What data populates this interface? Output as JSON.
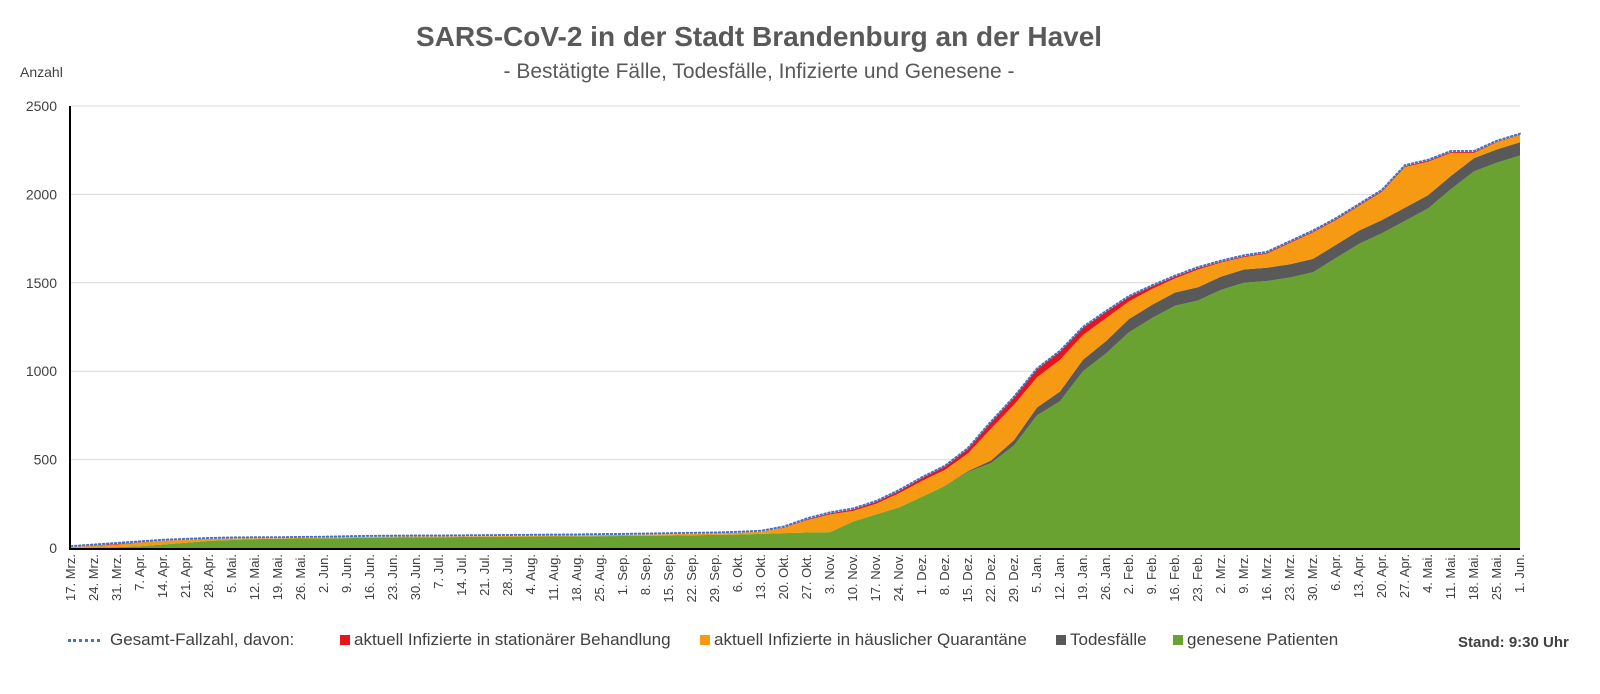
{
  "chart_data": {
    "type": "area",
    "title": "SARS-CoV-2 in der Stadt Brandenburg an der Havel",
    "subtitle": "- Bestätigte Fälle, Todesfälle, Infizierte und Genesene -",
    "ylabel": "Anzahl",
    "xlabel": "",
    "ylim": [
      0,
      2500
    ],
    "yticks": [
      0,
      500,
      1000,
      1500,
      2000,
      2500
    ],
    "grid": true,
    "stacked": true,
    "legend_position": "bottom",
    "categories": [
      "17. Mrz.",
      "24. Mrz.",
      "31. Mrz.",
      "7. Apr.",
      "14. Apr.",
      "21. Apr.",
      "28. Apr.",
      "5. Mai.",
      "12. Mai.",
      "19. Mai.",
      "26. Mai.",
      "2. Jun.",
      "9. Jun.",
      "16. Jun.",
      "23. Jun.",
      "30. Jun.",
      "7. Jul.",
      "14. Jul.",
      "21. Jul.",
      "28. Jul.",
      "4. Aug.",
      "11. Aug.",
      "18. Aug.",
      "25. Aug.",
      "1. Sep.",
      "8. Sep.",
      "15. Sep.",
      "22. Sep.",
      "29. Sep.",
      "6. Okt.",
      "13. Okt.",
      "20. Okt.",
      "27. Okt.",
      "3. Nov.",
      "10. Nov.",
      "17. Nov.",
      "24. Nov.",
      "1. Dez.",
      "8. Dez.",
      "15. Dez.",
      "22. Dez.",
      "29. Dez.",
      "5. Jan.",
      "12. Jan.",
      "19. Jan.",
      "26. Jan.",
      "2. Feb.",
      "9. Feb.",
      "16. Feb.",
      "23. Feb.",
      "2. Mrz.",
      "9. Mrz.",
      "16. Mrz.",
      "23. Mrz.",
      "30. Mrz.",
      "6. Apr.",
      "13. Apr.",
      "20. Apr.",
      "27. Apr.",
      "4. Mai.",
      "11. Mai.",
      "18. Mai.",
      "25. Mai.",
      "1. Jun."
    ],
    "series": [
      {
        "name": "genesene Patienten",
        "color": "#6aa232",
        "values": [
          0,
          2,
          5,
          10,
          20,
          30,
          40,
          45,
          50,
          52,
          54,
          55,
          56,
          58,
          59,
          60,
          61,
          62,
          63,
          63,
          64,
          65,
          66,
          67,
          68,
          69,
          70,
          72,
          74,
          76,
          80,
          84,
          88,
          90,
          150,
          190,
          230,
          290,
          350,
          430,
          480,
          580,
          750,
          830,
          1000,
          1100,
          1220,
          1300,
          1370,
          1400,
          1460,
          1500,
          1510,
          1530,
          1560,
          1640,
          1720,
          1780,
          1850,
          1920,
          2030,
          2130,
          2180,
          2220
        ]
      },
      {
        "name": "Todesfälle",
        "color": "#595959",
        "values": [
          0,
          0,
          0,
          0,
          0,
          0,
          0,
          0,
          0,
          0,
          0,
          0,
          0,
          0,
          0,
          0,
          0,
          0,
          0,
          0,
          0,
          0,
          0,
          0,
          0,
          0,
          0,
          0,
          0,
          0,
          0,
          0,
          0,
          0,
          0,
          0,
          0,
          0,
          2,
          5,
          15,
          30,
          45,
          55,
          65,
          70,
          75,
          75,
          75,
          75,
          75,
          75,
          75,
          75,
          75,
          75,
          75,
          75,
          75,
          75,
          75,
          75,
          75,
          75
        ]
      },
      {
        "name": "aktuell Infizierte in häuslicher Quarantäne",
        "color": "#f59a12",
        "values": [
          5,
          10,
          15,
          20,
          20,
          15,
          10,
          8,
          5,
          3,
          3,
          3,
          5,
          5,
          5,
          5,
          4,
          4,
          4,
          5,
          5,
          5,
          5,
          6,
          6,
          7,
          8,
          8,
          8,
          10,
          12,
          30,
          70,
          100,
          60,
          60,
          80,
          90,
          90,
          100,
          180,
          200,
          170,
          180,
          140,
          130,
          100,
          90,
          80,
          100,
          80,
          70,
          80,
          120,
          150,
          140,
          140,
          160,
          230,
          190,
          130,
          30,
          40,
          40
        ]
      },
      {
        "name": "aktuell Infizierte in stationärer Behandlung",
        "color": "#e8141b",
        "values": [
          0,
          2,
          3,
          2,
          1,
          1,
          1,
          1,
          0,
          0,
          0,
          0,
          0,
          0,
          0,
          0,
          0,
          0,
          0,
          0,
          0,
          0,
          0,
          0,
          0,
          0,
          0,
          0,
          0,
          0,
          0,
          2,
          4,
          6,
          8,
          10,
          12,
          15,
          18,
          25,
          35,
          40,
          45,
          45,
          40,
          35,
          25,
          15,
          10,
          8,
          5,
          5,
          5,
          5,
          5,
          5,
          5,
          5,
          5,
          5,
          5,
          5,
          3,
          3
        ]
      }
    ],
    "total_series": {
      "name": "Gesamt-Fallzahl, davon:",
      "color": "#4472c4"
    }
  },
  "legend": {
    "total": "Gesamt-Fallzahl, davon:",
    "stationaer": "aktuell Infizierte in stationärer Behandlung",
    "quarantaene": "aktuell Infizierte in häuslicher Quarantäne",
    "tod": "Todesfälle",
    "genesen": "genesene Patienten"
  },
  "stand": "Stand: 9:30 Uhr"
}
